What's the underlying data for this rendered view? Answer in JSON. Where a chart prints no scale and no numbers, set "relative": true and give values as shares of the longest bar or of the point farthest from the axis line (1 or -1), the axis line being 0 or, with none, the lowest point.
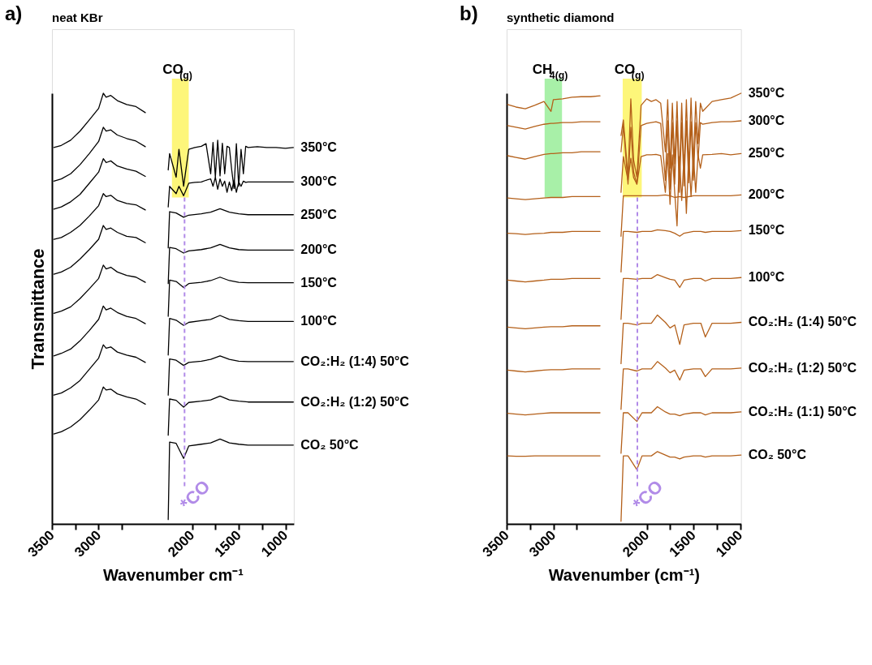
{
  "chart_data": [
    {
      "type": "line",
      "relative": true,
      "ylabel": "Transmittance",
      "xlabel": "Wavenumber cm⁻¹",
      "xlim": [
        3500,
        910
      ],
      "xticks": [
        3500,
        {
          "value": 3250,
          "label": null
        },
        3000,
        {
          "value": 2750,
          "label": null
        },
        2000,
        {
          "value": 1750,
          "label": null
        },
        1500,
        {
          "value": 1250,
          "label": null
        },
        1000
      ],
      "tick_labels": "x",
      "annotations": [
        "a)",
        "neat KBr"
      ],
      "bands": [
        {
          "axis": "x",
          "from": 2215,
          "to": 2035,
          "label": "CO$_{(g)}$",
          "color": "#fdf67a"
        }
      ],
      "ref_lines": [
        {
          "axis": "x",
          "value": 2080,
          "label": "*CO",
          "color": "#b18be8",
          "line_style": "dashed"
        }
      ],
      "series": [
        {
          "name": "350°C",
          "color": "#000000",
          "x": [
            3480,
            3400,
            3300,
            3200,
            3100,
            3000,
            2950,
            2920,
            2870,
            2800,
            2700,
            2600,
            2500,
            2400,
            2255,
            2240,
            2170,
            2140,
            2090,
            2035,
            1970,
            1900,
            1850,
            1800,
            1775,
            1750,
            1725,
            1700,
            1675,
            1650,
            1625,
            1600,
            1575,
            1550,
            1525,
            1500,
            1475,
            1450,
            1425,
            1400,
            1300,
            1200,
            1100,
            1000,
            915
          ],
          "values": [
            0.874,
            0.879,
            0.891,
            0.912,
            0.938,
            0.965,
            1.0,
            0.991,
            0.995,
            0.983,
            0.974,
            0.969,
            0.955,
            null,
            0.822,
            0.86,
            0.805,
            0.87,
            0.784,
            0.87,
            0.874,
            0.877,
            0.883,
            0.813,
            0.886,
            0.805,
            0.891,
            0.808,
            0.884,
            0.813,
            0.877,
            0.874,
            0.822,
            0.779,
            0.883,
            0.784,
            0.87,
            0.813,
            0.877,
            0.874,
            0.876,
            0.874,
            0.874,
            0.872,
            0.874
          ]
        },
        {
          "name": "300°C",
          "color": "#000000",
          "x": [
            3480,
            3400,
            3300,
            3200,
            3100,
            3000,
            2950,
            2920,
            2870,
            2800,
            2700,
            2600,
            2500,
            2400,
            2255,
            2240,
            2170,
            2140,
            2090,
            2035,
            1970,
            1900,
            1850,
            1800,
            1775,
            1750,
            1725,
            1700,
            1675,
            1650,
            1625,
            1600,
            1575,
            1550,
            1525,
            1500,
            1475,
            1450,
            1425,
            1400,
            1300,
            1200,
            1100,
            1000,
            915
          ],
          "values": [
            0.796,
            0.801,
            0.813,
            0.834,
            0.86,
            0.888,
            0.921,
            0.912,
            0.915,
            0.903,
            0.895,
            0.889,
            0.876,
            null,
            0.736,
            0.784,
            0.767,
            0.784,
            0.762,
            0.791,
            0.793,
            0.794,
            0.798,
            0.801,
            0.784,
            0.805,
            0.777,
            0.801,
            0.784,
            0.796,
            0.77,
            0.794,
            0.774,
            0.798,
            0.77,
            0.794,
            0.784,
            0.796,
            0.793,
            0.794,
            0.794,
            0.794,
            0.794,
            0.794,
            0.794
          ]
        },
        {
          "name": "250°C",
          "color": "#000000",
          "x": [
            3480,
            3400,
            3300,
            3200,
            3100,
            3000,
            2950,
            2920,
            2870,
            2800,
            2700,
            2600,
            2500,
            2400,
            2255,
            2240,
            2170,
            2090,
            2035,
            1900,
            1800,
            1700,
            1600,
            1500,
            1400,
            1200,
            1000,
            915
          ],
          "values": [
            0.731,
            0.736,
            0.748,
            0.765,
            0.791,
            0.817,
            0.848,
            0.839,
            0.843,
            0.831,
            0.824,
            0.819,
            0.807,
            null,
            0.641,
            0.725,
            0.722,
            0.712,
            0.717,
            0.72,
            0.724,
            0.732,
            0.724,
            0.72,
            0.718,
            0.718,
            0.718,
            0.718
          ]
        },
        {
          "name": "200°C",
          "color": "#000000",
          "x": [
            3480,
            3400,
            3300,
            3200,
            3100,
            3000,
            2950,
            2920,
            2870,
            2800,
            2700,
            2600,
            2500,
            2400,
            2255,
            2240,
            2170,
            2090,
            2035,
            1900,
            1800,
            1700,
            1600,
            1500,
            1400,
            1200,
            1000,
            915
          ],
          "values": [
            0.661,
            0.665,
            0.677,
            0.693,
            0.715,
            0.739,
            0.767,
            0.76,
            0.763,
            0.751,
            0.744,
            0.741,
            0.729,
            null,
            0.558,
            0.642,
            0.639,
            0.629,
            0.634,
            0.637,
            0.641,
            0.649,
            0.641,
            0.637,
            0.636,
            0.636,
            0.636,
            0.636
          ]
        },
        {
          "name": "150°C",
          "color": "#000000",
          "x": [
            3480,
            3400,
            3300,
            3200,
            3100,
            3000,
            2950,
            2920,
            2870,
            2800,
            2700,
            2600,
            2500,
            2400,
            2255,
            2240,
            2170,
            2090,
            2035,
            1900,
            1800,
            1700,
            1600,
            1500,
            1400,
            1200,
            1000,
            915
          ],
          "values": [
            0.58,
            0.585,
            0.596,
            0.615,
            0.637,
            0.661,
            0.693,
            0.684,
            0.687,
            0.677,
            0.668,
            0.665,
            0.653,
            null,
            0.482,
            0.566,
            0.563,
            0.549,
            0.558,
            0.561,
            0.565,
            0.573,
            0.565,
            0.561,
            0.56,
            0.56,
            0.56,
            0.56
          ]
        },
        {
          "name": "100°C",
          "color": "#000000",
          "x": [
            3480,
            3400,
            3300,
            3200,
            3100,
            3000,
            2950,
            2920,
            2870,
            2800,
            2700,
            2600,
            2500,
            2400,
            2255,
            2240,
            2170,
            2090,
            2035,
            1900,
            1800,
            1700,
            1600,
            1500,
            1400,
            1200,
            1000,
            915
          ],
          "values": [
            0.489,
            0.494,
            0.504,
            0.523,
            0.546,
            0.57,
            0.601,
            0.592,
            0.596,
            0.585,
            0.577,
            0.573,
            0.561,
            null,
            0.392,
            0.477,
            0.473,
            0.461,
            0.468,
            0.472,
            0.475,
            0.484,
            0.475,
            0.472,
            0.47,
            0.47,
            0.47,
            0.47
          ]
        },
        {
          "name": "CO₂:H₂ (1:4) 50°C",
          "color": "#000000",
          "x": [
            3480,
            3400,
            3300,
            3200,
            3100,
            3000,
            2950,
            2920,
            2870,
            2800,
            2700,
            2600,
            2500,
            2400,
            2255,
            2240,
            2170,
            2090,
            2035,
            1900,
            1800,
            1700,
            1600,
            1500,
            1400,
            1200,
            1000,
            915
          ],
          "values": [
            0.39,
            0.396,
            0.406,
            0.425,
            0.449,
            0.475,
            0.506,
            0.497,
            0.501,
            0.491,
            0.482,
            0.477,
            0.465,
            null,
            0.299,
            0.383,
            0.38,
            0.368,
            0.375,
            0.378,
            0.382,
            0.39,
            0.382,
            0.378,
            0.377,
            0.377,
            0.377,
            0.377
          ]
        },
        {
          "name": "CO₂:H₂ (1:2) 50°C",
          "color": "#000000",
          "x": [
            3480,
            3400,
            3300,
            3200,
            3100,
            3000,
            2950,
            2920,
            2870,
            2800,
            2700,
            2600,
            2500,
            2400,
            2255,
            2240,
            2170,
            2090,
            2035,
            1900,
            1800,
            1700,
            1600,
            1500,
            1400,
            1200,
            1000,
            915
          ],
          "values": [
            0.299,
            0.304,
            0.316,
            0.333,
            0.359,
            0.385,
            0.416,
            0.408,
            0.411,
            0.399,
            0.392,
            0.387,
            0.375,
            null,
            0.206,
            0.29,
            0.287,
            0.271,
            0.282,
            0.285,
            0.288,
            0.297,
            0.288,
            0.285,
            0.283,
            0.283,
            0.283,
            0.283
          ]
        },
        {
          "name": "CO₂ 50°C",
          "color": "#000000",
          "x": [
            3480,
            3400,
            3300,
            3200,
            3100,
            3000,
            2950,
            2920,
            2870,
            2800,
            2700,
            2600,
            2500,
            2400,
            2255,
            2240,
            2170,
            2090,
            2035,
            1900,
            1800,
            1700,
            1600,
            1500,
            1400,
            1200,
            1000,
            915
          ],
          "values": [
            0.209,
            0.214,
            0.225,
            0.242,
            0.264,
            0.288,
            0.318,
            0.311,
            0.313,
            0.302,
            0.295,
            0.29,
            0.278,
            null,
            0.01,
            0.19,
            0.187,
            0.152,
            0.181,
            0.185,
            0.188,
            0.197,
            0.188,
            0.185,
            0.183,
            0.183,
            0.183,
            0.183
          ]
        }
      ]
    },
    {
      "type": "line",
      "relative": true,
      "xlabel": "Wavenumber (cm⁻¹)",
      "xlim": [
        3500,
        990
      ],
      "xticks": [
        3500,
        {
          "value": 3250,
          "label": null
        },
        3000,
        {
          "value": 2750,
          "label": null
        },
        2000,
        {
          "value": 1750,
          "label": null
        },
        1500,
        {
          "value": 1250,
          "label": null
        },
        1000
      ],
      "tick_labels": "x",
      "annotations": [
        "b)",
        "synthetic diamond"
      ],
      "bands": [
        {
          "axis": "x",
          "from": 3093,
          "to": 2907,
          "label": "CH$_{4(g)}$",
          "color": "#a8f0a8"
        },
        {
          "axis": "x",
          "from": 2257,
          "to": 2053,
          "label": "CO$_{(g)}$",
          "color": "#fdf67a"
        }
      ],
      "ref_lines": [
        {
          "axis": "x",
          "value": 2100,
          "label": "*CO",
          "color": "#b18be8",
          "line_style": "dashed"
        }
      ],
      "series": [
        {
          "name": "350°C",
          "color": "#b4601a",
          "x": [
            3490,
            3400,
            3300,
            3200,
            3100,
            3025,
            3000,
            2900,
            2800,
            2700,
            2600,
            2500,
            2400,
            2275,
            2250,
            2200,
            2170,
            2140,
            2105,
            2060,
            2000,
            1950,
            1900,
            1850,
            1800,
            1775,
            1750,
            1725,
            1700,
            1675,
            1650,
            1625,
            1600,
            1575,
            1550,
            1525,
            1500,
            1475,
            1450,
            1425,
            1400,
            1300,
            1200,
            1100,
            990
          ],
          "values": [
            0.974,
            0.968,
            0.964,
            0.972,
            0.981,
            0.958,
            0.985,
            0.987,
            0.991,
            0.992,
            0.992,
            0.994,
            null,
            0.902,
            0.938,
            0.806,
            0.987,
            0.845,
            0.806,
            0.972,
            0.987,
            0.981,
            0.985,
            0.977,
            0.864,
            0.985,
            0.826,
            0.977,
            0.836,
            0.981,
            0.806,
            0.977,
            0.817,
            0.985,
            0.826,
            0.989,
            0.836,
            0.981,
            0.883,
            0.977,
            0.958,
            0.981,
            0.985,
            0.989,
            1.0
          ]
        },
        {
          "name": "300°C",
          "color": "#b4601a",
          "x": [
            3490,
            3400,
            3300,
            3200,
            3100,
            3025,
            3000,
            2900,
            2800,
            2700,
            2600,
            2500,
            2400,
            2275,
            2250,
            2200,
            2170,
            2140,
            2105,
            2060,
            2000,
            1950,
            1900,
            1850,
            1800,
            1775,
            1750,
            1725,
            1700,
            1675,
            1650,
            1625,
            1600,
            1575,
            1550,
            1525,
            1500,
            1475,
            1450,
            1425,
            1400,
            1300,
            1200,
            1100,
            990
          ],
          "values": [
            0.925,
            0.921,
            0.917,
            0.923,
            0.928,
            0.93,
            0.93,
            0.932,
            0.932,
            0.934,
            0.934,
            0.934,
            null,
            0.864,
            0.925,
            0.789,
            0.921,
            0.817,
            0.789,
            0.925,
            0.93,
            0.932,
            0.934,
            0.93,
            0.798,
            0.936,
            0.777,
            0.932,
            0.789,
            0.936,
            0.77,
            0.932,
            0.785,
            0.936,
            0.792,
            0.934,
            0.798,
            0.932,
            0.845,
            0.932,
            0.928,
            0.932,
            0.934,
            0.934,
            0.936
          ]
        },
        {
          "name": "250°C",
          "color": "#b4601a",
          "x": [
            3490,
            3400,
            3300,
            3200,
            3100,
            3025,
            3000,
            2900,
            2800,
            2700,
            2600,
            2500,
            2400,
            2275,
            2250,
            2200,
            2170,
            2140,
            2105,
            2060,
            2000,
            1950,
            1900,
            1850,
            1800,
            1775,
            1750,
            1725,
            1700,
            1675,
            1650,
            1625,
            1600,
            1575,
            1550,
            1525,
            1500,
            1475,
            1450,
            1425,
            1400,
            1300,
            1200,
            1100,
            990
          ],
          "values": [
            0.855,
            0.851,
            0.847,
            0.853,
            0.858,
            0.86,
            0.86,
            0.862,
            0.862,
            0.864,
            0.864,
            0.864,
            null,
            0.77,
            0.853,
            0.798,
            0.849,
            0.804,
            0.789,
            0.853,
            0.857,
            0.857,
            0.858,
            0.855,
            0.77,
            0.86,
            0.742,
            0.857,
            0.77,
            0.692,
            0.853,
            0.751,
            0.857,
            0.721,
            0.858,
            0.76,
            0.857,
            0.77,
            0.857,
            0.826,
            0.857,
            0.858,
            0.86,
            0.857,
            0.86
          ]
        },
        {
          "name": "200°C",
          "color": "#b4601a",
          "x": [
            3490,
            3400,
            3300,
            3200,
            3100,
            3025,
            3000,
            2900,
            2800,
            2700,
            2600,
            2500,
            2400,
            2275,
            2250,
            2200,
            2105,
            2050,
            1950,
            1885,
            1800,
            1750,
            1700,
            1646,
            1600,
            1500,
            1420,
            1372,
            1300,
            1200,
            1100,
            990
          ],
          "values": [
            0.757,
            0.755,
            0.753,
            0.755,
            0.757,
            0.758,
            0.758,
            0.758,
            0.76,
            0.76,
            0.76,
            0.76,
            null,
            0.668,
            0.762,
            0.762,
            0.762,
            0.762,
            0.762,
            0.762,
            0.764,
            0.762,
            0.758,
            0.76,
            0.758,
            0.762,
            0.762,
            0.762,
            0.762,
            0.762,
            0.762,
            0.764
          ]
        },
        {
          "name": "150°C",
          "color": "#b4601a",
          "x": [
            3490,
            3400,
            3300,
            3200,
            3100,
            3025,
            3000,
            2900,
            2800,
            2700,
            2600,
            2500,
            2400,
            2275,
            2250,
            2200,
            2105,
            2050,
            1950,
            1885,
            1800,
            1750,
            1700,
            1646,
            1600,
            1500,
            1420,
            1372,
            1300,
            1200,
            1100,
            990
          ],
          "values": [
            0.675,
            0.674,
            0.672,
            0.674,
            0.675,
            0.677,
            0.677,
            0.677,
            0.679,
            0.679,
            0.679,
            0.679,
            null,
            0.585,
            0.679,
            0.679,
            0.677,
            0.679,
            0.679,
            0.683,
            0.681,
            0.679,
            0.675,
            0.668,
            0.675,
            0.679,
            0.679,
            0.677,
            0.679,
            0.679,
            0.679,
            0.681
          ]
        },
        {
          "name": "100°C",
          "color": "#b4601a",
          "x": [
            3490,
            3400,
            3300,
            3200,
            3100,
            3025,
            3000,
            2900,
            2800,
            2700,
            2600,
            2500,
            2400,
            2275,
            2250,
            2200,
            2105,
            2050,
            1950,
            1885,
            1800,
            1750,
            1700,
            1646,
            1600,
            1500,
            1420,
            1372,
            1300,
            1200,
            1100,
            990
          ],
          "values": [
            0.566,
            0.564,
            0.562,
            0.564,
            0.566,
            0.568,
            0.568,
            0.568,
            0.57,
            0.57,
            0.57,
            0.57,
            null,
            0.475,
            0.57,
            0.57,
            0.568,
            0.57,
            0.57,
            0.579,
            0.572,
            0.568,
            0.566,
            0.549,
            0.566,
            0.57,
            0.57,
            0.564,
            0.57,
            0.57,
            0.57,
            0.572
          ]
        },
        {
          "name": "CO₂:H₂ (1:4) 50°C",
          "color": "#b4601a",
          "x": [
            3490,
            3400,
            3300,
            3200,
            3100,
            3025,
            3000,
            2900,
            2800,
            2700,
            2600,
            2500,
            2400,
            2275,
            2250,
            2200,
            2105,
            2050,
            1950,
            1885,
            1800,
            1750,
            1700,
            1646,
            1600,
            1500,
            1420,
            1372,
            1300,
            1200,
            1100,
            990
          ],
          "values": [
            0.457,
            0.455,
            0.453,
            0.455,
            0.457,
            0.458,
            0.458,
            0.458,
            0.46,
            0.46,
            0.46,
            0.46,
            null,
            0.372,
            0.466,
            0.466,
            0.462,
            0.466,
            0.466,
            0.485,
            0.468,
            0.455,
            0.462,
            0.417,
            0.462,
            0.466,
            0.466,
            0.434,
            0.466,
            0.466,
            0.466,
            0.468
          ]
        },
        {
          "name": "CO₂:H₂ (1:2) 50°C",
          "color": "#b4601a",
          "x": [
            3490,
            3400,
            3300,
            3200,
            3100,
            3025,
            3000,
            2900,
            2800,
            2700,
            2600,
            2500,
            2400,
            2275,
            2250,
            2200,
            2105,
            2050,
            1950,
            1885,
            1800,
            1750,
            1700,
            1646,
            1600,
            1500,
            1420,
            1372,
            1300,
            1200,
            1100,
            990
          ],
          "values": [
            0.357,
            0.355,
            0.353,
            0.355,
            0.357,
            0.358,
            0.358,
            0.358,
            0.36,
            0.36,
            0.36,
            0.36,
            null,
            0.266,
            0.36,
            0.36,
            0.355,
            0.36,
            0.36,
            0.377,
            0.362,
            0.351,
            0.357,
            0.334,
            0.357,
            0.36,
            0.36,
            0.342,
            0.36,
            0.36,
            0.36,
            0.362
          ]
        },
        {
          "name": "CO₂:H₂ (1:1) 50°C",
          "color": "#b4601a",
          "x": [
            3490,
            3400,
            3300,
            3200,
            3100,
            3025,
            3000,
            2900,
            2800,
            2700,
            2600,
            2500,
            2400,
            2275,
            2250,
            2200,
            2105,
            2050,
            1950,
            1885,
            1800,
            1750,
            1700,
            1646,
            1600,
            1500,
            1420,
            1372,
            1300,
            1200,
            1100,
            990
          ],
          "values": [
            0.257,
            0.255,
            0.253,
            0.255,
            0.257,
            0.258,
            0.258,
            0.258,
            0.258,
            0.258,
            0.258,
            0.258,
            null,
            0.164,
            0.258,
            0.258,
            0.238,
            0.258,
            0.258,
            0.272,
            0.26,
            0.255,
            0.255,
            0.251,
            0.255,
            0.258,
            0.258,
            0.253,
            0.258,
            0.258,
            0.258,
            0.26
          ]
        },
        {
          "name": "CO₂ 50°C",
          "color": "#b4601a",
          "x": [
            3490,
            3400,
            3300,
            3200,
            3100,
            3025,
            3000,
            2900,
            2800,
            2700,
            2600,
            2500,
            2400,
            2275,
            2250,
            2200,
            2105,
            2050,
            1950,
            1885,
            1800,
            1750,
            1700,
            1646,
            1600,
            1500,
            1420,
            1372,
            1300,
            1200,
            1100,
            990
          ],
          "values": [
            0.158,
            0.157,
            0.157,
            0.158,
            0.158,
            0.158,
            0.158,
            0.158,
            0.158,
            0.158,
            0.158,
            0.158,
            null,
            0.006,
            0.158,
            0.158,
            0.126,
            0.158,
            0.158,
            0.168,
            0.16,
            0.155,
            0.155,
            0.151,
            0.155,
            0.158,
            0.158,
            0.155,
            0.158,
            0.158,
            0.158,
            0.16
          ]
        }
      ]
    }
  ]
}
